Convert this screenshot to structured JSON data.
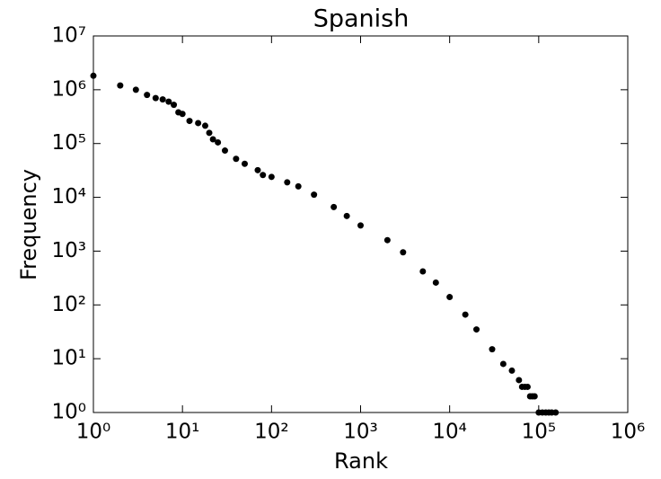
{
  "chart_data": {
    "type": "scatter",
    "title": "Spanish",
    "xlabel": "Rank",
    "ylabel": "Frequency",
    "xscale": "log",
    "yscale": "log",
    "color": "#000000",
    "xlim": [
      1,
      1000000
    ],
    "ylim": [
      1,
      10000000
    ],
    "xticks": [
      {
        "value": 1,
        "label": "10⁰"
      },
      {
        "value": 10,
        "label": "10¹"
      },
      {
        "value": 100,
        "label": "10²"
      },
      {
        "value": 1000,
        "label": "10³"
      },
      {
        "value": 10000,
        "label": "10⁴"
      },
      {
        "value": 100000,
        "label": "10⁵"
      },
      {
        "value": 1000000,
        "label": "10⁶"
      }
    ],
    "yticks": [
      {
        "value": 1,
        "label": "10⁰"
      },
      {
        "value": 10,
        "label": "10¹"
      },
      {
        "value": 100,
        "label": "10²"
      },
      {
        "value": 1000,
        "label": "10³"
      },
      {
        "value": 10000,
        "label": "10⁴"
      },
      {
        "value": 100000,
        "label": "10⁵"
      },
      {
        "value": 1000000,
        "label": "10⁶"
      },
      {
        "value": 10000000,
        "label": "10⁷"
      }
    ],
    "x": [
      1,
      2,
      3,
      4,
      5,
      6,
      7,
      8,
      9,
      10,
      12,
      15,
      18,
      20,
      22,
      25,
      30,
      40,
      50,
      70,
      80,
      100,
      150,
      200,
      300,
      500,
      700,
      1000,
      2000,
      3000,
      5000,
      7000,
      10000,
      15000,
      20000,
      30000,
      40000,
      50000,
      60000,
      65000,
      70000,
      75000,
      80000,
      85000,
      90000,
      100000,
      110000,
      120000,
      130000,
      140000,
      155000
    ],
    "values": [
      1820000,
      1200000,
      1000000,
      800000,
      700000,
      660000,
      600000,
      525000,
      380000,
      355000,
      263000,
      240000,
      214000,
      158000,
      120000,
      105000,
      74000,
      52000,
      42000,
      32000,
      26000,
      24000,
      19000,
      16000,
      11200,
      6600,
      4500,
      3000,
      1600,
      950,
      420,
      260,
      140,
      66,
      35,
      15,
      8,
      6,
      4,
      3,
      3,
      3,
      2,
      2,
      2,
      1,
      1,
      1,
      1,
      1,
      1
    ]
  }
}
